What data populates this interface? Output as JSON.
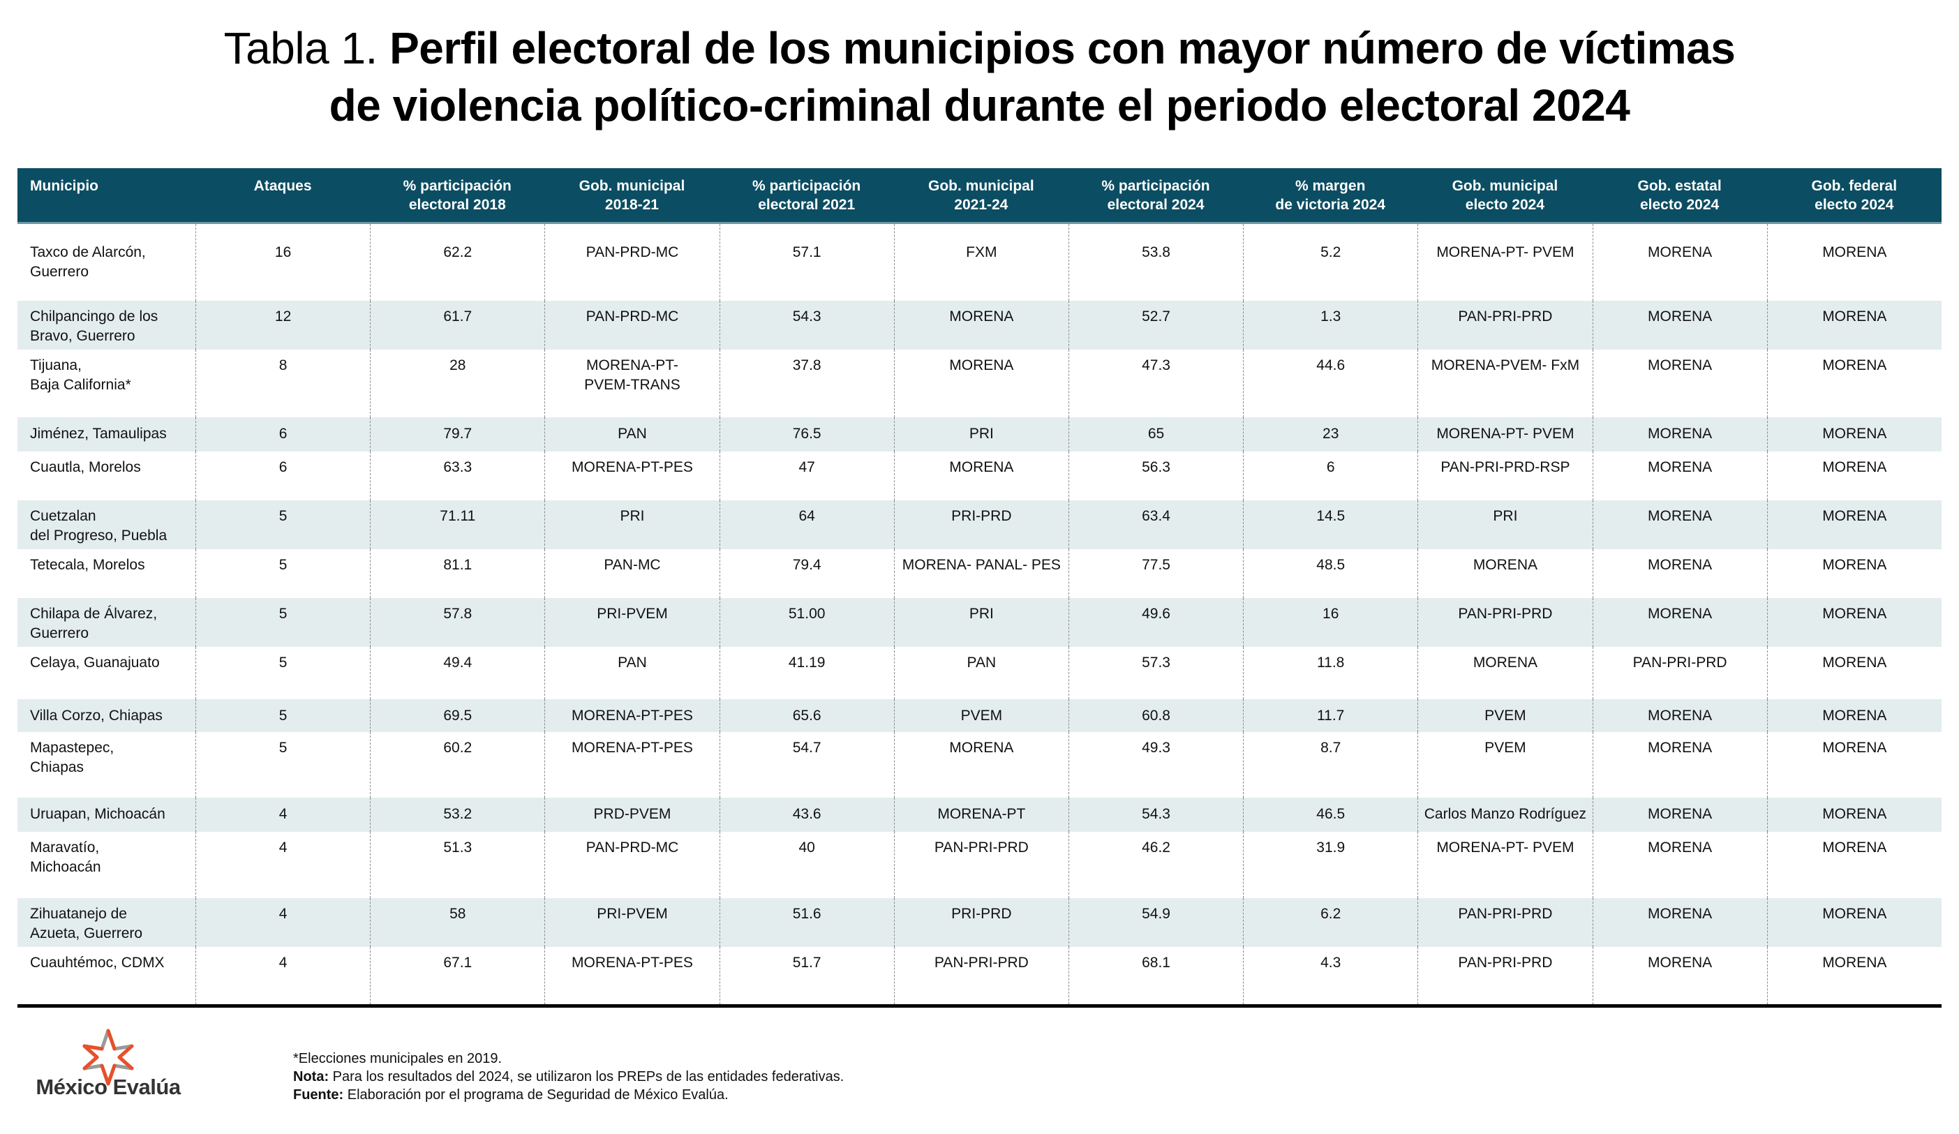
{
  "title": {
    "lead": "Tabla 1.",
    "line1_bold": "Perfil electoral de los municipios con mayor número de víctimas",
    "line2_bold": "de violencia político-criminal durante el periodo electoral 2024"
  },
  "columns": [
    "Municipio",
    "Ataques",
    "% participación\nelectoral 2018",
    "Gob. municipal\n2018-21",
    "% participación\nelectoral 2021",
    "Gob. municipal\n2021-24",
    "% participación\nelectoral 2024",
    "% margen\nde victoria 2024",
    "Gob. municipal\nelecto 2024",
    "Gob. estatal\nelecto 2024",
    "Gob. federal\nelecto 2024"
  ],
  "rows": [
    [
      "Taxco de Alarcón,\nGuerrero",
      "16",
      "62.2",
      "PAN-PRD-MC",
      "57.1",
      "FXM",
      "53.8",
      "5.2",
      "MORENA-PT- PVEM",
      "MORENA",
      "MORENA"
    ],
    [
      "Chilpancingo de los\nBravo, Guerrero",
      "12",
      "61.7",
      "PAN-PRD-MC",
      "54.3",
      "MORENA",
      "52.7",
      "1.3",
      "PAN-PRI-PRD",
      "MORENA",
      "MORENA"
    ],
    [
      "Tijuana,\nBaja California*",
      "8",
      "28",
      "MORENA-PT-\nPVEM-TRANS",
      "37.8",
      "MORENA",
      "47.3",
      "44.6",
      "MORENA-PVEM- FxM",
      "MORENA",
      "MORENA"
    ],
    [
      "Jiménez, Tamaulipas",
      "6",
      "79.7",
      "PAN",
      "76.5",
      "PRI",
      "65",
      "23",
      "MORENA-PT- PVEM",
      "MORENA",
      "MORENA"
    ],
    [
      "Cuautla, Morelos",
      "6",
      "63.3",
      "MORENA-PT-PES",
      "47",
      "MORENA",
      "56.3",
      "6",
      "PAN-PRI-PRD-RSP",
      "MORENA",
      "MORENA"
    ],
    [
      "Cuetzalan\ndel Progreso, Puebla",
      "5",
      "71.11",
      "PRI",
      "64",
      "PRI-PRD",
      "63.4",
      "14.5",
      "PRI",
      "MORENA",
      "MORENA"
    ],
    [
      "Tetecala, Morelos",
      "5",
      "81.1",
      "PAN-MC",
      "79.4",
      "MORENA- PANAL- PES",
      "77.5",
      "48.5",
      "MORENA",
      "MORENA",
      "MORENA"
    ],
    [
      "Chilapa de Álvarez,\nGuerrero",
      "5",
      "57.8",
      "PRI-PVEM",
      "51.00",
      "PRI",
      "49.6",
      "16",
      "PAN-PRI-PRD",
      "MORENA",
      "MORENA"
    ],
    [
      "Celaya, Guanajuato",
      "5",
      "49.4",
      "PAN",
      "41.19",
      "PAN",
      "57.3",
      "11.8",
      "MORENA",
      "PAN-PRI-PRD",
      "MORENA"
    ],
    [
      "Villa Corzo, Chiapas",
      "5",
      "69.5",
      "MORENA-PT-PES",
      "65.6",
      "PVEM",
      "60.8",
      "11.7",
      "PVEM",
      "MORENA",
      "MORENA"
    ],
    [
      "Mapastepec,\nChiapas",
      "5",
      "60.2",
      "MORENA-PT-PES",
      "54.7",
      "MORENA",
      "49.3",
      "8.7",
      "PVEM",
      "MORENA",
      "MORENA"
    ],
    [
      "Uruapan, Michoacán",
      "4",
      "53.2",
      "PRD-PVEM",
      "43.6",
      "MORENA-PT",
      "54.3",
      "46.5",
      "Carlos Manzo Rodríguez",
      "MORENA",
      "MORENA"
    ],
    [
      "Maravatío,\nMichoacán",
      "4",
      "51.3",
      "PAN-PRD-MC",
      "40",
      "PAN-PRI-PRD",
      "46.2",
      "31.9",
      "MORENA-PT- PVEM",
      "MORENA",
      "MORENA"
    ],
    [
      "Zihuatanejo de\nAzueta, Guerrero",
      "4",
      "58",
      "PRI-PVEM",
      "51.6",
      "PRI-PRD",
      "54.9",
      "6.2",
      "PAN-PRI-PRD",
      "MORENA",
      "MORENA"
    ],
    [
      "Cuauhtémoc, CDMX",
      "4",
      "67.1",
      "MORENA-PT-PES",
      "51.7",
      "PAN-PRI-PRD",
      "68.1",
      "4.3",
      "PAN-PRI-PRD",
      "MORENA",
      "MORENA"
    ]
  ],
  "notes": {
    "asterisk": "*Elecciones municipales en 2019.",
    "nota_label": "Nota:",
    "nota_text": " Para los resultados del 2024, se utilizaron los PREPs de las entidades federativas.",
    "fuente_label": "Fuente:",
    "fuente_text": " Elaboración por el programa de Seguridad de México Evalúa."
  },
  "logo": {
    "text": "México Evalúa",
    "icon": "star-logo-icon",
    "accent_color": "#e8502a",
    "secondary_color": "#9a9a9a"
  },
  "colors": {
    "header_bg": "#0b4d62",
    "alt_row_bg": "#e4edee"
  }
}
